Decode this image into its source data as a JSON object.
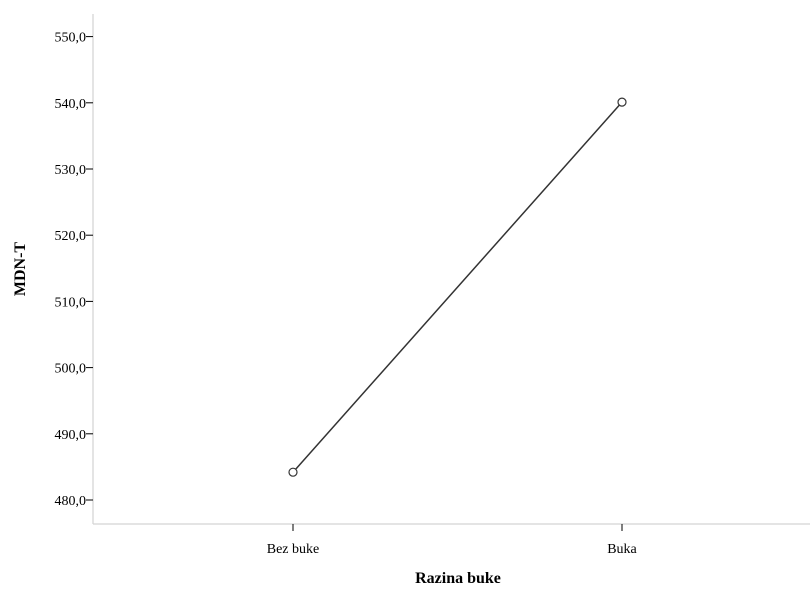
{
  "chart_data": {
    "type": "line",
    "categories": [
      "Bez buke",
      "Buka"
    ],
    "series": [
      {
        "values": [
          484.2,
          540.1
        ]
      }
    ],
    "xlabel": "Razina buke",
    "ylabel": "MDN-T",
    "ylim": [
      476.0,
      552.0
    ],
    "yticks": [
      480,
      490,
      500,
      510,
      520,
      530,
      540,
      550
    ],
    "ytick_labels": [
      "480,0",
      "490,0",
      "500,0",
      "510,0",
      "520,0",
      "530,0",
      "540,0",
      "550,0"
    ],
    "grid": false,
    "marker": "open-circle",
    "line_color": "#333333"
  }
}
